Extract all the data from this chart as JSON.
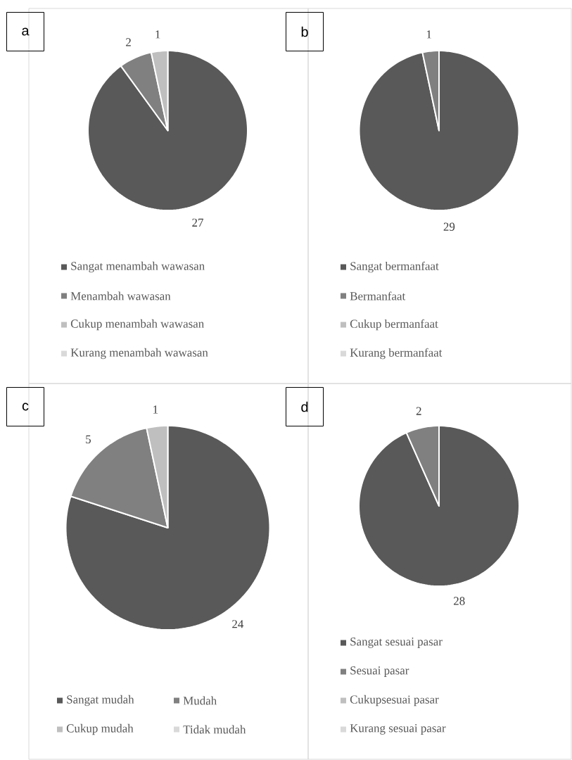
{
  "chart_data": [
    {
      "type": "pie",
      "title": "a",
      "categories": [
        "Sangat menambah wawasan",
        "Menambah wawasan",
        "Cukup menambah wawasan",
        "Kurang menambah wawasan"
      ],
      "values": [
        27,
        2,
        1,
        0
      ],
      "value_labels": [
        "27",
        "2",
        "1",
        null
      ],
      "colors": [
        "#595959",
        "#808080",
        "#bfbfbf",
        "#d9d9d9"
      ],
      "legend": "bottom"
    },
    {
      "type": "pie",
      "title": "b",
      "categories": [
        "Sangat bermanfaat",
        "Bermanfaat",
        "Cukup bermanfaat",
        "Kurang bermanfaat"
      ],
      "values": [
        29,
        1,
        0,
        0
      ],
      "value_labels": [
        "29",
        "1",
        null,
        null
      ],
      "colors": [
        "#595959",
        "#808080",
        "#bfbfbf",
        "#d9d9d9"
      ],
      "legend": "bottom"
    },
    {
      "type": "pie",
      "title": "c",
      "categories": [
        "Sangat mudah",
        "Mudah",
        "Cukup mudah",
        "Tidak mudah"
      ],
      "values": [
        24,
        5,
        1,
        0
      ],
      "value_labels": [
        "24",
        "5",
        "1",
        null
      ],
      "colors": [
        "#595959",
        "#808080",
        "#bfbfbf",
        "#d9d9d9"
      ],
      "legend": "bottom"
    },
    {
      "type": "pie",
      "title": "d",
      "categories": [
        "Sangat sesuai pasar",
        "Sesuai pasar",
        "Cukupsesuai pasar",
        "Kurang sesuai pasar"
      ],
      "values": [
        28,
        2,
        0,
        0
      ],
      "value_labels": [
        "28",
        "2",
        null,
        null
      ],
      "colors": [
        "#595959",
        "#808080",
        "#bfbfbf",
        "#d9d9d9"
      ],
      "legend": "bottom"
    }
  ]
}
